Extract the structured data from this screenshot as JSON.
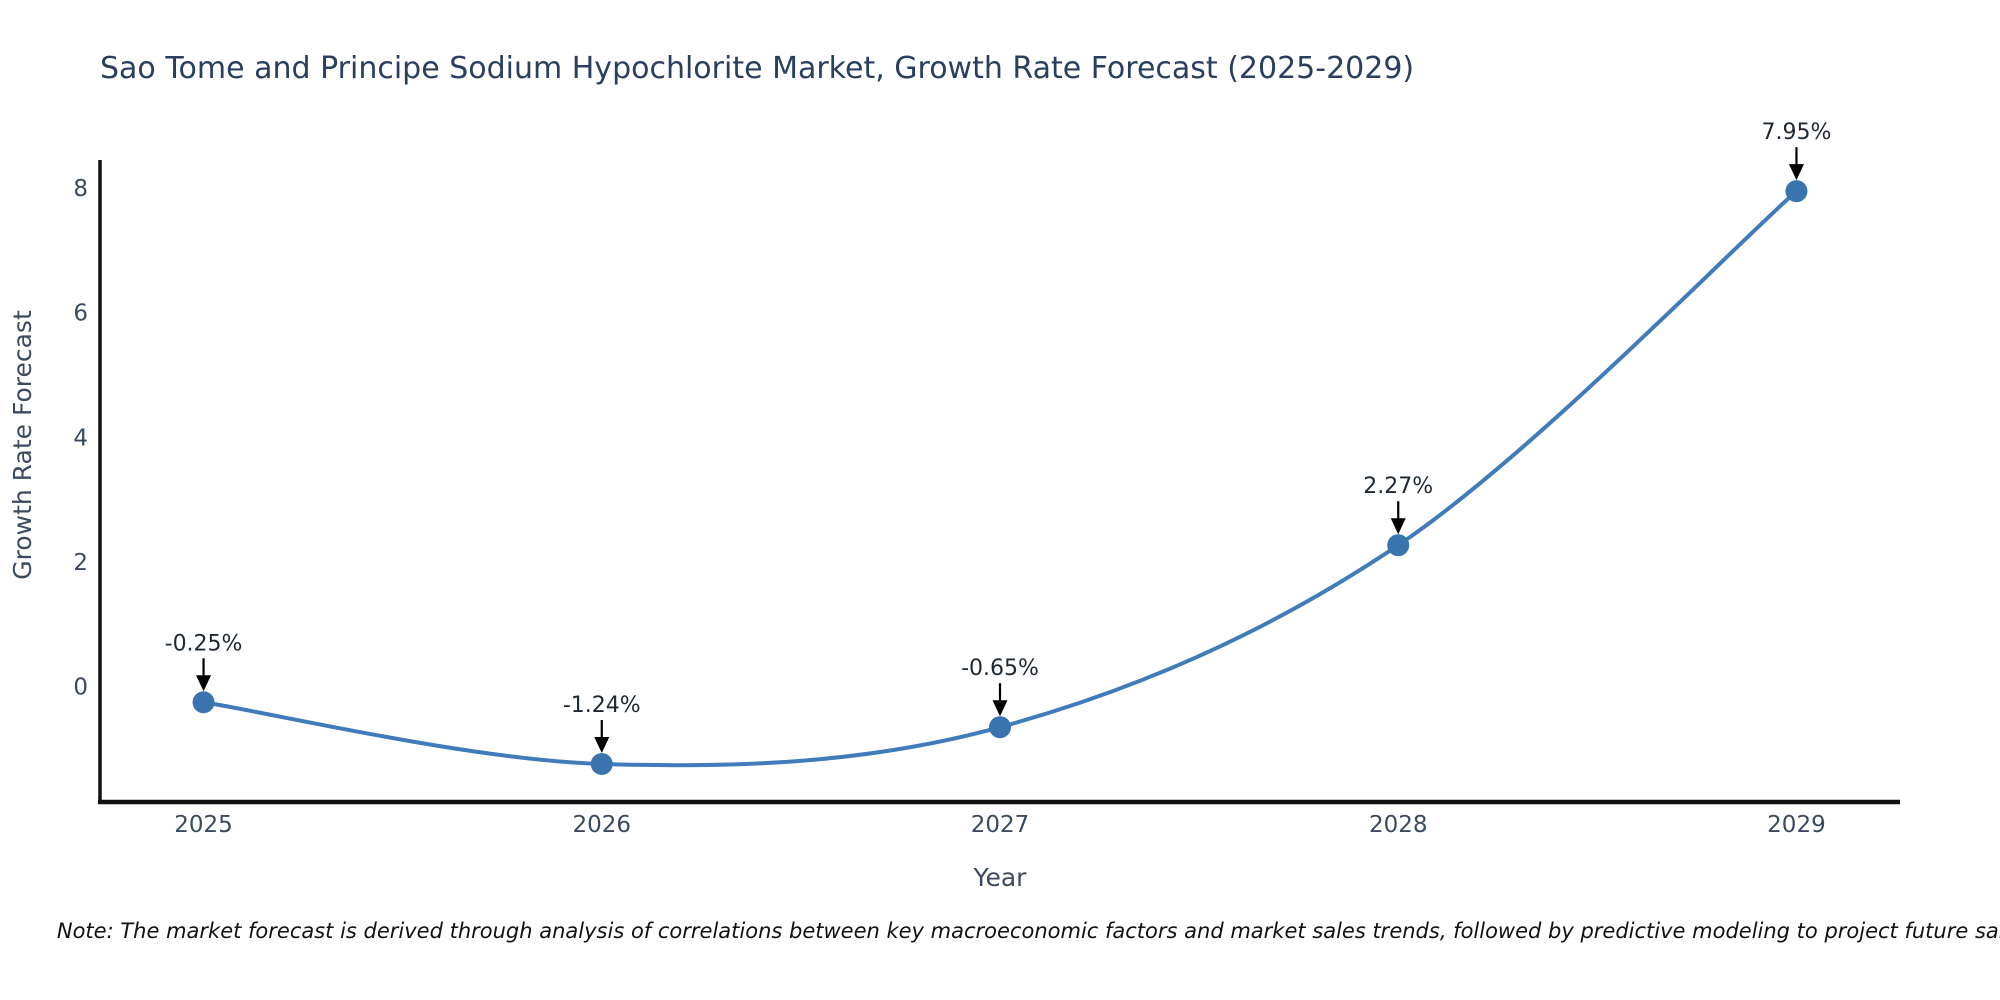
{
  "page": {
    "background": "#ffffff"
  },
  "chart_data": {
    "type": "line",
    "title": "Sao Tome and Principe Sodium Hypochlorite Market, Growth Rate Forecast (2025-2029)",
    "xlabel": "Year",
    "ylabel": "Growth Rate Forecast",
    "x": [
      2025,
      2026,
      2027,
      2028,
      2029
    ],
    "y": [
      -0.25,
      -1.24,
      -0.65,
      2.27,
      7.95
    ],
    "point_labels": [
      "-0.25%",
      "-1.24%",
      "-0.65%",
      "2.27%",
      "7.95%"
    ],
    "x_tick_labels": [
      "2025",
      "2026",
      "2027",
      "2028",
      "2029"
    ],
    "x_tick_values": [
      2025,
      2026,
      2027,
      2028,
      2029
    ],
    "y_tick_labels": [
      "0",
      "2",
      "4",
      "6",
      "8"
    ],
    "y_tick_values": [
      0,
      2,
      4,
      6,
      8
    ],
    "xlim": [
      2024.74,
      2029.26
    ],
    "ylim": [
      -1.85,
      8.45
    ],
    "line_shape": "spline",
    "grid": false,
    "legend": false,
    "marker_size": 11,
    "line_width": 4,
    "colors": {
      "line": "#3f7cb9",
      "marker": "#3a74ae",
      "axis": "#111111",
      "title": "#2a3f5f",
      "tick": "#3b4a5f",
      "axis_title": "#3b4a5f",
      "annotation": "#1e2833",
      "arrow": "#000000",
      "note": "#111111"
    }
  },
  "note": {
    "text": "Note: The market forecast is derived through analysis of correlations between key macroeconomic factors and market sales trends, followed by predictive modeling to project future sales."
  }
}
